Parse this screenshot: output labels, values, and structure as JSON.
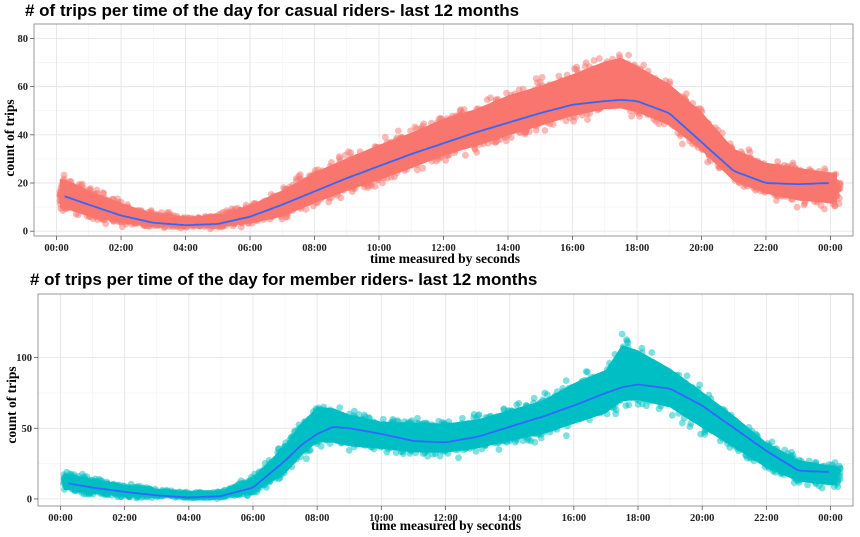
{
  "chart_data": [
    {
      "type": "scatter",
      "title": "# of trips per time of the day for casual riders- last 12 months",
      "xlabel": "time measured by seconds",
      "ylabel": "count of trips",
      "x_ticks": [
        "00:00",
        "02:00",
        "04:00",
        "06:00",
        "08:00",
        "10:00",
        "12:00",
        "14:00",
        "16:00",
        "18:00",
        "20:00",
        "22:00",
        "00:00"
      ],
      "y_ticks": [
        0,
        20,
        40,
        60,
        80
      ],
      "ylim": [
        -2,
        86
      ],
      "xlim_hours": [
        -0.7,
        24.7
      ],
      "grid": true,
      "point_color": "#F8766D",
      "line_color": "#3366FF",
      "series": [
        {
          "x_hours": [
            0.25,
            1,
            2,
            3,
            4,
            5,
            6,
            7,
            8,
            9,
            10,
            11,
            12,
            13,
            14,
            15,
            16,
            17,
            17.5,
            18,
            19,
            20,
            21,
            22,
            23,
            24
          ],
          "smooth": [
            14.5,
            11,
            6.5,
            3.5,
            2.5,
            3,
            6,
            11,
            16.5,
            22,
            27,
            32,
            36.5,
            41,
            45,
            49,
            52.5,
            54,
            54.5,
            54,
            49,
            37,
            25,
            20,
            19.5,
            20
          ],
          "band_low": [
            6,
            3,
            1,
            0.5,
            0.5,
            0.5,
            1,
            3,
            8,
            13,
            17,
            22,
            27,
            31,
            35,
            39,
            43,
            45,
            45,
            44,
            39,
            29,
            17,
            12,
            9,
            8
          ],
          "band_high": [
            25,
            20,
            14,
            9,
            7,
            8,
            13,
            20,
            28,
            34,
            40,
            45,
            51,
            55,
            61,
            65,
            70,
            76,
            78,
            74,
            66,
            54,
            38,
            32,
            30,
            28
          ]
        }
      ]
    },
    {
      "type": "scatter",
      "title": "# of trips per time of the day for member riders- last 12 months",
      "xlabel": "time measured by seconds",
      "ylabel": "count of trips",
      "x_ticks": [
        "00:00",
        "02:00",
        "04:00",
        "06:00",
        "08:00",
        "10:00",
        "12:00",
        "14:00",
        "16:00",
        "18:00",
        "20:00",
        "22:00",
        "00:00"
      ],
      "y_ticks": [
        0,
        50,
        100
      ],
      "ylim": [
        -5,
        145
      ],
      "xlim_hours": [
        -0.7,
        24.7
      ],
      "grid": true,
      "point_color": "#00BFC4",
      "line_color": "#3366FF",
      "series": [
        {
          "x_hours": [
            0.25,
            1,
            2,
            3,
            4,
            5,
            6,
            7,
            7.5,
            8,
            8.5,
            9,
            10,
            11,
            12,
            13,
            14,
            15,
            16,
            17,
            17.5,
            18,
            19,
            20,
            21,
            22,
            23,
            24
          ],
          "smooth": [
            11,
            8,
            5,
            2.5,
            1,
            2,
            8,
            27,
            38,
            46,
            51,
            50,
            46,
            41,
            40,
            44,
            51,
            58,
            66,
            75,
            79,
            81,
            78,
            66,
            50,
            34,
            20,
            19
          ],
          "band_low": [
            3,
            1,
            0,
            0,
            0,
            0,
            1,
            12,
            24,
            33,
            33,
            31,
            30,
            27,
            27,
            30,
            35,
            39,
            45,
            52,
            58,
            60,
            57,
            43,
            30,
            17,
            8,
            6
          ],
          "band_high": [
            21,
            17,
            12,
            8,
            5,
            6,
            18,
            44,
            60,
            72,
            71,
            66,
            60,
            60,
            59,
            62,
            69,
            76,
            90,
            100,
            120,
            115,
            100,
            83,
            65,
            45,
            32,
            27
          ]
        }
      ]
    }
  ]
}
